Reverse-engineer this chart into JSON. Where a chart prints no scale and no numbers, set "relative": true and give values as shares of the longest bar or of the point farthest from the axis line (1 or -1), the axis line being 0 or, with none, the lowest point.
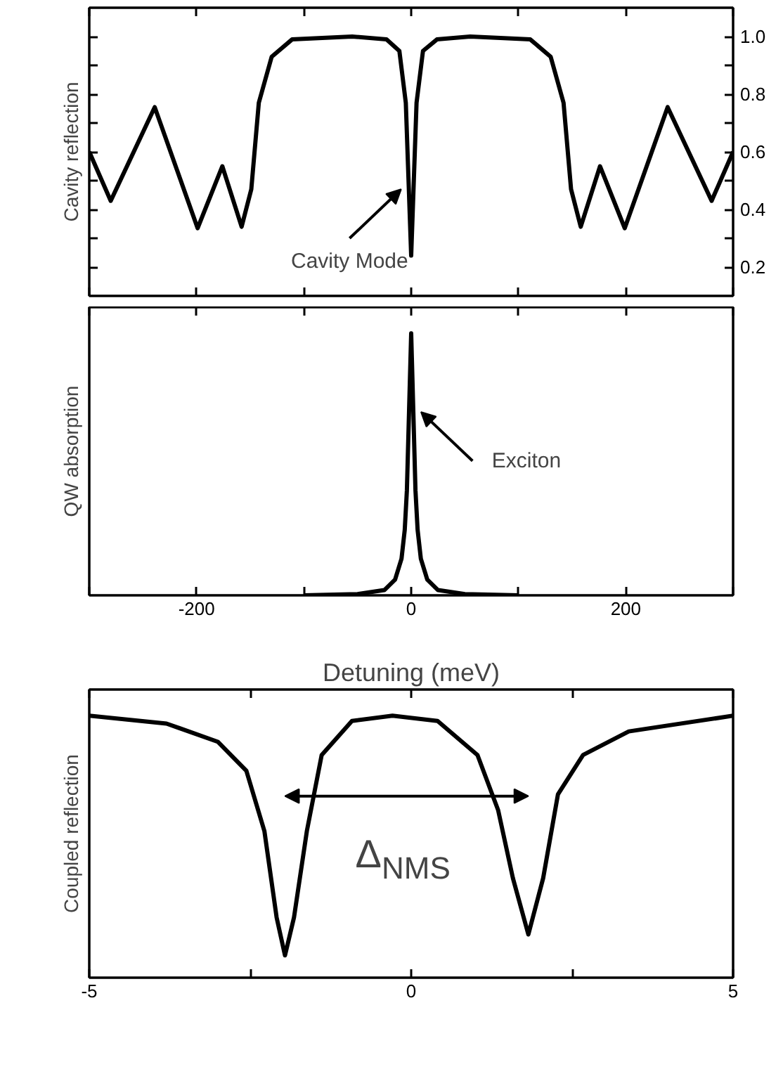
{
  "chart_data": [
    {
      "type": "line",
      "ylabel": "Cavity reflection",
      "tick_labels": "y",
      "xlim": [
        -300,
        300
      ],
      "xticks": [
        {
          "value": -300,
          "label": null
        },
        -200,
        {
          "value": -100,
          "label": null
        },
        0,
        {
          "value": 100,
          "label": null
        },
        200,
        {
          "value": 300,
          "label": null
        }
      ],
      "ylim": [
        0.1,
        1.1
      ],
      "yticks": [
        0.2,
        {
          "value": 0.3,
          "label": null
        },
        0.4,
        {
          "value": 0.5,
          "label": null
        },
        0.6,
        {
          "value": 0.7,
          "label": null
        },
        0.8,
        {
          "value": 0.9,
          "label": null
        },
        {
          "value": 1.0,
          "label": "1.0"
        }
      ],
      "x": [
        -300,
        -280,
        -239,
        -199,
        -176,
        -158,
        -149,
        -142,
        -130,
        -111,
        -55,
        -23,
        -11,
        -5,
        0,
        5,
        11,
        24,
        55,
        111,
        130,
        142,
        149,
        158,
        176,
        199,
        239,
        280,
        300
      ],
      "series": [
        {
          "color": "#000000",
          "values": [
            0.6,
            0.43,
            0.755,
            0.335,
            0.55,
            0.34,
            0.47,
            0.77,
            0.93,
            0.99,
            1.0,
            0.99,
            0.95,
            0.77,
            0.24,
            0.77,
            0.95,
            0.99,
            1.0,
            0.99,
            0.93,
            0.77,
            0.47,
            0.34,
            0.55,
            0.335,
            0.755,
            0.43,
            0.6
          ]
        }
      ],
      "annotations": [
        {
          "text": "Cavity Mode",
          "x": -2.2,
          "y": 0.47
        }
      ]
    },
    {
      "type": "line",
      "relative": true,
      "ylabel": "QW absorption",
      "tick_labels": "x",
      "xlim": [
        -300,
        300
      ],
      "xticks": [
        {
          "value": -300,
          "label": null
        },
        -200,
        {
          "value": -100,
          "label": null
        },
        0,
        {
          "value": 100,
          "label": null
        },
        200,
        {
          "value": 300,
          "label": null
        }
      ],
      "x": [
        -100,
        -50,
        -25,
        -15,
        -9,
        -6,
        -4,
        -2,
        0,
        2,
        4,
        6,
        9,
        15,
        25,
        50,
        100
      ],
      "series": [
        {
          "color": "#000000",
          "values": [
            0,
            0.005,
            0.02,
            0.06,
            0.14,
            0.25,
            0.4,
            0.7,
            1,
            0.7,
            0.4,
            0.25,
            0.14,
            0.06,
            0.02,
            0.005,
            0
          ]
        }
      ],
      "annotations": [
        {
          "text": "Exciton",
          "x": 2,
          "y": 0.7
        }
      ]
    },
    {
      "type": "line",
      "relative": true,
      "ylabel": "Coupled reflection",
      "xlabel": "Detuning (meV)",
      "tick_labels": "x",
      "xlim": [
        -5,
        5
      ],
      "xticks": [
        -5,
        {
          "value": -2.5,
          "label": null
        },
        0,
        {
          "value": 2.5,
          "label": null
        },
        5
      ],
      "x": [
        -5,
        -3.8,
        -3.0,
        -2.56,
        -2.28,
        -2.09,
        -1.96,
        -1.82,
        -1.62,
        -1.39,
        -0.92,
        -0.29,
        0.41,
        1.03,
        1.35,
        1.58,
        1.82,
        2.05,
        2.28,
        2.67,
        3.38,
        5
      ],
      "series": [
        {
          "color": "#000000",
          "values": [
            1.0,
            0.97,
            0.9,
            0.79,
            0.56,
            0.23,
            0.085,
            0.23,
            0.56,
            0.85,
            0.98,
            1.0,
            0.98,
            0.85,
            0.64,
            0.38,
            0.165,
            0.38,
            0.7,
            0.85,
            0.94,
            1.0
          ]
        }
      ],
      "annotations": [
        "Δ$_{NMS}$"
      ]
    }
  ]
}
